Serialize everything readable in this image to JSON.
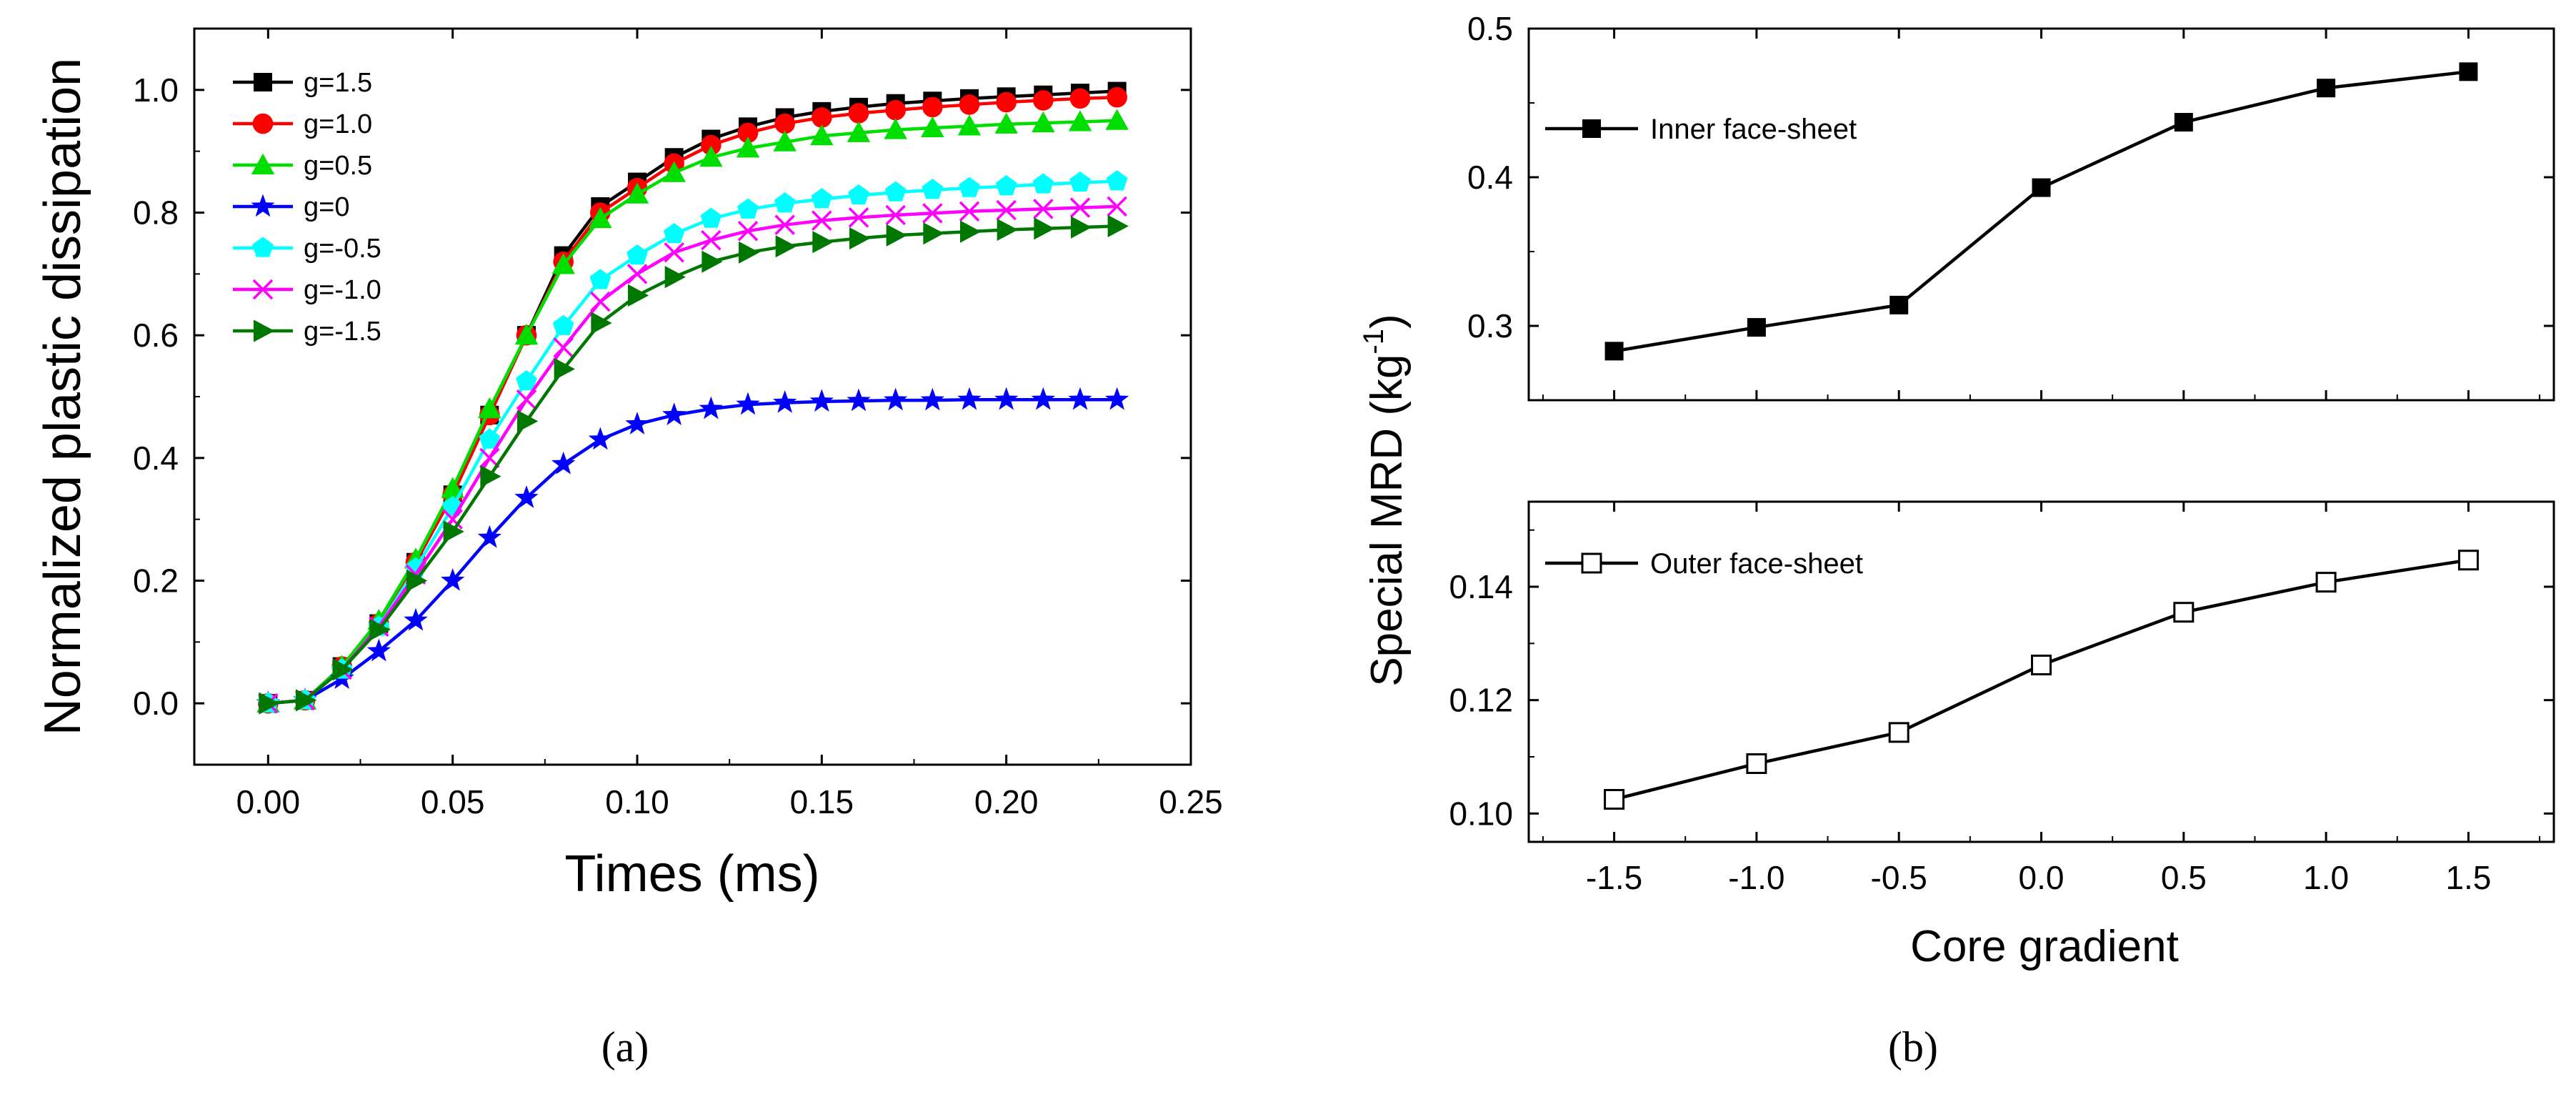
{
  "chart_data": [
    {
      "panel": "a",
      "type": "line",
      "xlabel": "Times (ms)",
      "ylabel": "Normalized plastic dissipation",
      "xlim": [
        -0.02,
        0.25
      ],
      "ylim": [
        -0.1,
        1.1
      ],
      "xticks": [
        "0.00",
        "0.05",
        "0.10",
        "0.15",
        "0.20",
        "0.25"
      ],
      "xtick_values": [
        0,
        0.05,
        0.1,
        0.15,
        0.2,
        0.25
      ],
      "yticks": [
        "0.0",
        "0.2",
        "0.4",
        "0.6",
        "0.8",
        "1.0"
      ],
      "ytick_values": [
        0,
        0.2,
        0.4,
        0.6,
        0.8,
        1.0
      ],
      "legend_position": "top-left",
      "x": [
        0,
        0.01,
        0.02,
        0.03,
        0.04,
        0.05,
        0.06,
        0.07,
        0.08,
        0.09,
        0.1,
        0.11,
        0.12,
        0.13,
        0.14,
        0.15,
        0.16,
        0.17,
        0.18,
        0.19,
        0.2,
        0.21,
        0.22,
        0.23
      ],
      "series": [
        {
          "name": "g=1.5",
          "color": "#000000",
          "marker": "square",
          "values": [
            0,
            0.005,
            0.06,
            0.13,
            0.23,
            0.34,
            0.47,
            0.6,
            0.73,
            0.81,
            0.85,
            0.89,
            0.92,
            0.94,
            0.955,
            0.965,
            0.972,
            0.978,
            0.982,
            0.986,
            0.989,
            0.992,
            0.995,
            0.998
          ]
        },
        {
          "name": "g=1.0",
          "color": "#ff0000",
          "marker": "circle",
          "values": [
            0,
            0.005,
            0.06,
            0.13,
            0.23,
            0.34,
            0.47,
            0.6,
            0.72,
            0.8,
            0.84,
            0.88,
            0.91,
            0.93,
            0.945,
            0.955,
            0.962,
            0.967,
            0.972,
            0.976,
            0.98,
            0.983,
            0.986,
            0.988
          ]
        },
        {
          "name": "g=0.5",
          "color": "#00dd00",
          "marker": "triangle-up",
          "values": [
            0,
            0.005,
            0.06,
            0.135,
            0.235,
            0.35,
            0.48,
            0.6,
            0.715,
            0.79,
            0.83,
            0.865,
            0.89,
            0.905,
            0.915,
            0.925,
            0.93,
            0.935,
            0.938,
            0.941,
            0.944,
            0.946,
            0.948,
            0.95
          ]
        },
        {
          "name": "g=0",
          "color": "#0000ff",
          "marker": "star",
          "values": [
            0,
            0.005,
            0.04,
            0.085,
            0.135,
            0.2,
            0.27,
            0.335,
            0.39,
            0.43,
            0.455,
            0.47,
            0.48,
            0.487,
            0.49,
            0.492,
            0.493,
            0.494,
            0.494,
            0.495,
            0.495,
            0.495,
            0.495,
            0.495
          ]
        },
        {
          "name": "g=-0.5",
          "color": "#00ffff",
          "marker": "pentagon",
          "values": [
            0,
            0.005,
            0.055,
            0.125,
            0.22,
            0.32,
            0.43,
            0.525,
            0.615,
            0.69,
            0.73,
            0.765,
            0.79,
            0.805,
            0.815,
            0.822,
            0.828,
            0.833,
            0.837,
            0.84,
            0.843,
            0.846,
            0.849,
            0.851
          ]
        },
        {
          "name": "g=-1.0",
          "color": "#ff00ff",
          "marker": "cross",
          "values": [
            0,
            0.005,
            0.055,
            0.125,
            0.21,
            0.3,
            0.4,
            0.495,
            0.58,
            0.655,
            0.7,
            0.735,
            0.755,
            0.77,
            0.78,
            0.787,
            0.792,
            0.796,
            0.799,
            0.802,
            0.804,
            0.806,
            0.808,
            0.81
          ]
        },
        {
          "name": "g=-1.5",
          "color": "#007700",
          "marker": "triangle-right",
          "values": [
            0,
            0.005,
            0.055,
            0.12,
            0.2,
            0.28,
            0.37,
            0.46,
            0.545,
            0.62,
            0.665,
            0.695,
            0.72,
            0.735,
            0.745,
            0.752,
            0.758,
            0.763,
            0.766,
            0.769,
            0.772,
            0.774,
            0.776,
            0.778
          ]
        }
      ],
      "caption": "(a)"
    },
    {
      "panel": "b",
      "type": "line",
      "xlabel": "Core gradient",
      "ylabel_main": "Special MRD (kg",
      "ylabel_sup": "-1",
      "ylabel_close": ")",
      "xlim": [
        -1.8,
        1.8
      ],
      "xticks": [
        "-1.5",
        "-1.0",
        "-0.5",
        "0.0",
        "0.5",
        "1.0",
        "1.5"
      ],
      "xtick_values": [
        -1.5,
        -1.0,
        -0.5,
        0.0,
        0.5,
        1.0,
        1.5
      ],
      "x": [
        -1.5,
        -1.0,
        -0.5,
        0.0,
        0.5,
        1.0,
        1.5
      ],
      "subplots": [
        {
          "name": "Inner face-sheet",
          "marker": "filled-square",
          "color": "#000000",
          "ylim": [
            0.25,
            0.5
          ],
          "yticks": [
            "0.3",
            "0.4",
            "0.5"
          ],
          "ytick_values": [
            0.3,
            0.4,
            0.5
          ],
          "values": [
            0.283,
            0.299,
            0.314,
            0.393,
            0.437,
            0.46,
            0.471
          ],
          "legend_position": "top-left"
        },
        {
          "name": "Outer face-sheet",
          "marker": "open-square",
          "color": "#000000",
          "ylim": [
            0.095,
            0.155
          ],
          "yticks": [
            "0.10",
            "0.12",
            "0.14"
          ],
          "ytick_values": [
            0.1,
            0.12,
            0.14
          ],
          "values": [
            0.1025,
            0.1088,
            0.1143,
            0.1262,
            0.1355,
            0.1408,
            0.1447
          ],
          "legend_position": "top-left"
        }
      ],
      "caption": "(b)"
    }
  ]
}
